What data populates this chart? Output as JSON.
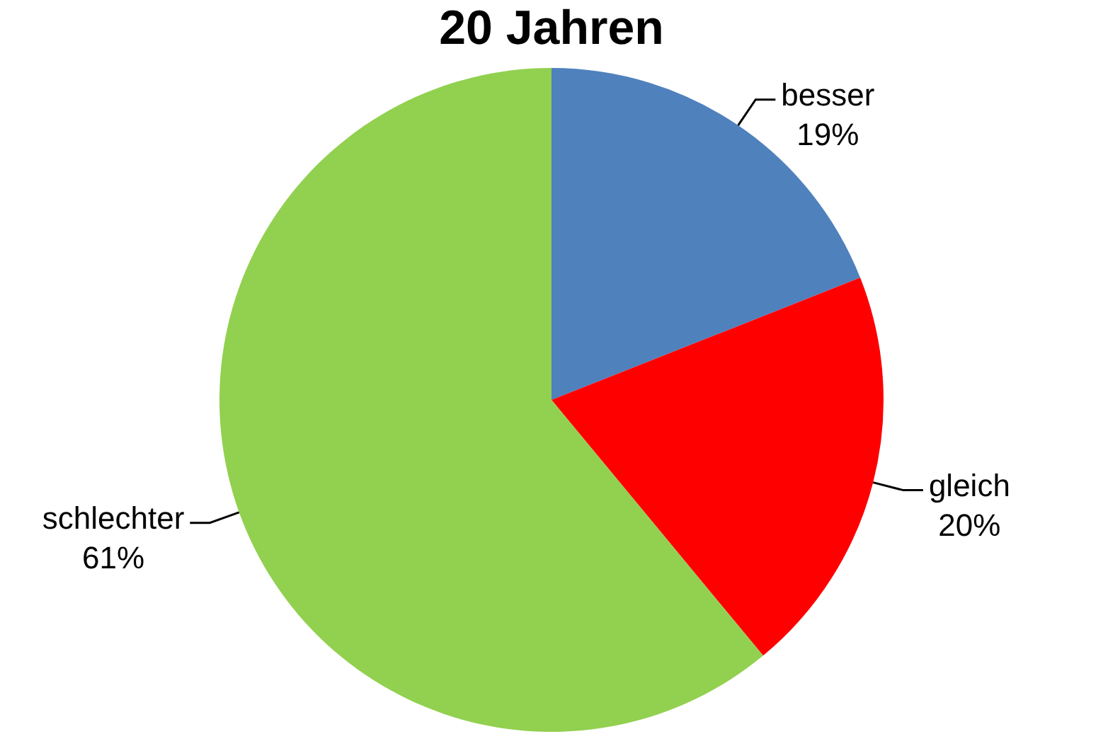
{
  "chart_data": {
    "type": "pie",
    "title": "20 Jahren",
    "categories": [
      "besser",
      "gleich",
      "schlechter"
    ],
    "values": [
      19,
      20,
      61
    ],
    "colors": [
      "#4f81bd",
      "#ff0000",
      "#92d050"
    ],
    "value_labels": [
      "19%",
      "20%",
      "61%"
    ],
    "legend": false
  }
}
